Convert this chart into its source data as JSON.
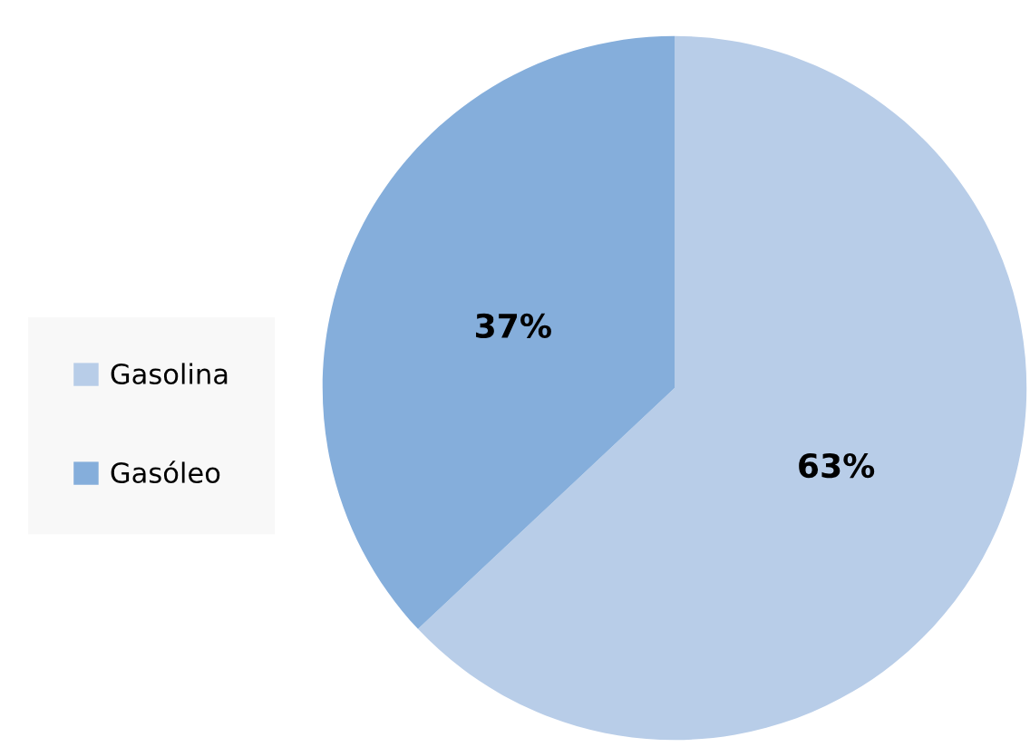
{
  "chart_data": {
    "type": "pie",
    "categories": [
      "Gasolina",
      "Gasóleo"
    ],
    "values": [
      63,
      37
    ],
    "colors": [
      "#b8cde8",
      "#85aedb"
    ],
    "value_labels": [
      "63%",
      "37%"
    ],
    "legend": "left"
  }
}
